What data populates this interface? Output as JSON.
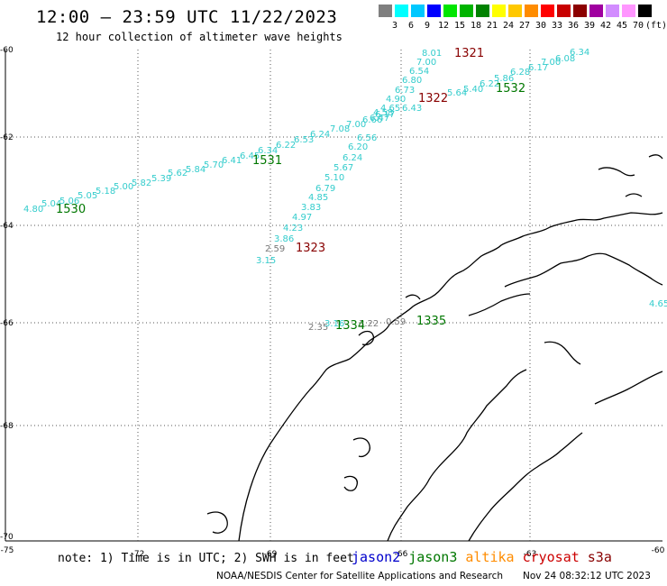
{
  "title": "12:00 — 23:59 UTC 11/22/2023",
  "subtitle": "12 hour collection of altimeter wave heights",
  "legend": {
    "unit": "(ft)",
    "levels": [
      {
        "label": "3",
        "color": "#7f7f7f"
      },
      {
        "label": "6",
        "color": "#00ffff"
      },
      {
        "label": "9",
        "color": "#00c8ff"
      },
      {
        "label": "12",
        "color": "#0000ff"
      },
      {
        "label": "15",
        "color": "#00e600"
      },
      {
        "label": "18",
        "color": "#00b400"
      },
      {
        "label": "21",
        "color": "#008200"
      },
      {
        "label": "24",
        "color": "#ffff00"
      },
      {
        "label": "27",
        "color": "#ffc800"
      },
      {
        "label": "30",
        "color": "#ff8c00"
      },
      {
        "label": "33",
        "color": "#ff0000"
      },
      {
        "label": "36",
        "color": "#c80000"
      },
      {
        "label": "39",
        "color": "#8c0000"
      },
      {
        "label": "42",
        "color": "#a000a0"
      },
      {
        "label": "45",
        "color": "#d28cff"
      },
      {
        "label": "70",
        "color": "#ff96ff"
      },
      {
        "label": "",
        "color": "#000000"
      }
    ]
  },
  "axes": {
    "lon_ticks": [
      "-75",
      "-72",
      "-69",
      "-66",
      "-63",
      "-60"
    ],
    "lat_ticks": [
      "-60",
      "-62",
      "-64",
      "-66",
      "-68",
      "-70"
    ]
  },
  "tracks": [
    {
      "id": "1530",
      "color": "#007700",
      "points": [
        {
          "v": "4.80",
          "color": "#33cccc"
        },
        {
          "v": "5.04",
          "color": "#33cccc"
        },
        {
          "v": "5.06",
          "color": "#33cccc"
        },
        {
          "v": "5.05",
          "color": "#33cccc"
        },
        {
          "v": "5.18",
          "color": "#33cccc"
        },
        {
          "v": "5.00",
          "color": "#33cccc"
        },
        {
          "v": "5.82",
          "color": "#33cccc"
        },
        {
          "v": "5.39",
          "color": "#33cccc"
        },
        {
          "v": "5.62",
          "color": "#33cccc"
        },
        {
          "v": "5.84",
          "color": "#33cccc"
        },
        {
          "v": "5.70",
          "color": "#33cccc"
        },
        {
          "v": "6.41",
          "color": "#33cccc"
        },
        {
          "v": "6.45",
          "color": "#33cccc"
        },
        {
          "v": "6.34",
          "color": "#33cccc"
        },
        {
          "v": "6.22",
          "color": "#33cccc"
        },
        {
          "v": "6.53",
          "color": "#33cccc"
        },
        {
          "v": "6.24",
          "color": "#33cccc"
        },
        {
          "v": "7.08",
          "color": "#33cccc"
        },
        {
          "v": "7.00",
          "color": "#33cccc"
        },
        {
          "v": "6.66",
          "color": "#33cccc"
        },
        {
          "v": "6.17",
          "color": "#33cccc"
        }
      ]
    },
    {
      "id": "1531",
      "color": "#007700",
      "points": []
    },
    {
      "id": "1532",
      "color": "#007700",
      "points": [
        {
          "v": "6.43",
          "color": "#33cccc"
        },
        {
          "v": "5.64",
          "color": "#33cccc"
        },
        {
          "v": "5.40",
          "color": "#33cccc"
        },
        {
          "v": "6.22",
          "color": "#33cccc"
        },
        {
          "v": "5.86",
          "color": "#33cccc"
        },
        {
          "v": "6.28",
          "color": "#33cccc"
        },
        {
          "v": "6.17",
          "color": "#33cccc"
        },
        {
          "v": "7.00",
          "color": "#33cccc"
        },
        {
          "v": "6.08",
          "color": "#33cccc"
        },
        {
          "v": "6.34",
          "color": "#33cccc"
        }
      ]
    },
    {
      "id": "1321",
      "color": "#880000",
      "points": [
        {
          "v": "8.01",
          "color": "#33cccc"
        },
        {
          "v": "7.00",
          "color": "#33cccc"
        },
        {
          "v": "6.54",
          "color": "#33cccc"
        },
        {
          "v": "6.80",
          "color": "#33cccc"
        },
        {
          "v": "6.73",
          "color": "#33cccc"
        },
        {
          "v": "4.90",
          "color": "#33cccc"
        },
        {
          "v": "4.65",
          "color": "#33cccc"
        },
        {
          "v": "4.58",
          "color": "#33cccc"
        },
        {
          "v": "6.47",
          "color": "#33cccc"
        }
      ]
    },
    {
      "id": "1322",
      "color": "#880000",
      "points": []
    },
    {
      "id": "1323",
      "color": "#880000",
      "points": [
        {
          "v": "6.56",
          "color": "#33cccc"
        },
        {
          "v": "6.20",
          "color": "#33cccc"
        },
        {
          "v": "6.24",
          "color": "#33cccc"
        },
        {
          "v": "5.67",
          "color": "#33cccc"
        },
        {
          "v": "5.10",
          "color": "#33cccc"
        },
        {
          "v": "6.79",
          "color": "#33cccc"
        },
        {
          "v": "4.85",
          "color": "#33cccc"
        },
        {
          "v": "3.83",
          "color": "#33cccc"
        },
        {
          "v": "4.97",
          "color": "#33cccc"
        },
        {
          "v": "4.23",
          "color": "#33cccc"
        },
        {
          "v": "3.86",
          "color": "#33cccc"
        },
        {
          "v": "2.59",
          "color": "#777777"
        },
        {
          "v": "3.15",
          "color": "#33cccc"
        }
      ]
    },
    {
      "id": "1334",
      "color": "#007700",
      "points": [
        {
          "v": "2.35",
          "color": "#777777"
        },
        {
          "v": "3.16",
          "color": "#33cccc"
        },
        {
          "v": "3.22",
          "color": "#777777"
        }
      ]
    },
    {
      "id": "1335",
      "color": "#007700",
      "points": [
        {
          "v": "0.59",
          "color": "#777777"
        }
      ]
    },
    {
      "id": "edge",
      "color": "#33cccc",
      "points": [
        {
          "v": "4.65",
          "color": "#33cccc"
        }
      ]
    }
  ],
  "note": "note:  1) Time is in UTC;  2) SWH is in feet",
  "satellites": [
    {
      "name": "jason2",
      "color": "#0000cc"
    },
    {
      "name": "jason3",
      "color": "#007700"
    },
    {
      "name": "altika",
      "color": "#ff8c00"
    },
    {
      "name": "cryosat",
      "color": "#cc0000"
    },
    {
      "name": "s3a",
      "color": "#880000"
    }
  ],
  "credit": "NOAA/NESDIS Center for Satellite Applications and Research",
  "timestamp": "Nov 24 08:32:12 UTC 2023"
}
